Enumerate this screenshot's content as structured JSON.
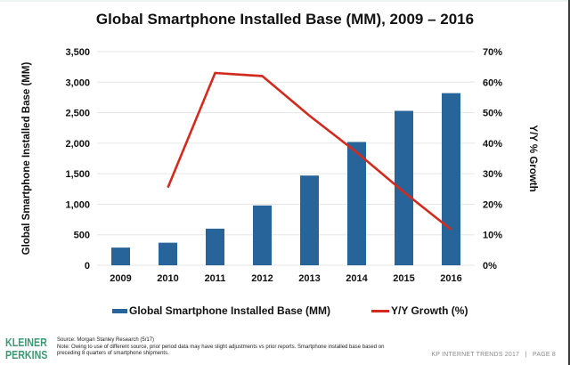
{
  "title": "Global Smartphone Installed Base (MM), 2009 – 2016",
  "legend": {
    "bar_label": "Global Smartphone Installed Base (MM)",
    "line_label": "Y/Y Growth (%)"
  },
  "footer": {
    "logo_line1": "KLEINER",
    "logo_line2": "PERKINS",
    "source": "Source: Morgan Stanley Research (5/17)",
    "note_line1": "Note: Owing to use of different source, prior period data may have slight adjustments vs prior reports. Smartphone installed base based on",
    "note_line2": "preceding 8 quarters of smartphone shipments.",
    "page_label": "KP INTERNET TRENDS 2017   |   PAGE 8"
  },
  "colors": {
    "bar": "#27649a",
    "line": "#d32a1e",
    "grid": "#e6e6e6",
    "logo": "#3a9a73"
  },
  "chart_data": {
    "type": "bar",
    "title": "Global Smartphone Installed Base (MM), 2009 – 2016",
    "categories": [
      "2009",
      "2010",
      "2011",
      "2012",
      "2013",
      "2014",
      "2015",
      "2016"
    ],
    "series": [
      {
        "name": "Global Smartphone Installed Base (MM)",
        "type": "bar",
        "axis": "left",
        "values": [
          290,
          370,
          600,
          980,
          1470,
          2020,
          2530,
          2820
        ]
      },
      {
        "name": "Y/Y Growth (%)",
        "type": "line",
        "axis": "right",
        "values": [
          null,
          25.5,
          63,
          62,
          49,
          37,
          24,
          11.7
        ]
      }
    ],
    "xlabel": "",
    "ylabel": "Global Smartphone Installed Base (MM)",
    "y2label": "Y/Y % Growth",
    "ylim": [
      0,
      3500
    ],
    "y2lim": [
      0,
      70
    ],
    "yticks": [
      "0",
      "500",
      "1,000",
      "1,500",
      "2,000",
      "2,500",
      "3,000",
      "3,500"
    ],
    "y2ticks": [
      "0%",
      "10%",
      "20%",
      "30%",
      "40%",
      "50%",
      "60%",
      "70%"
    ],
    "grid": true,
    "legend_position": "bottom"
  }
}
